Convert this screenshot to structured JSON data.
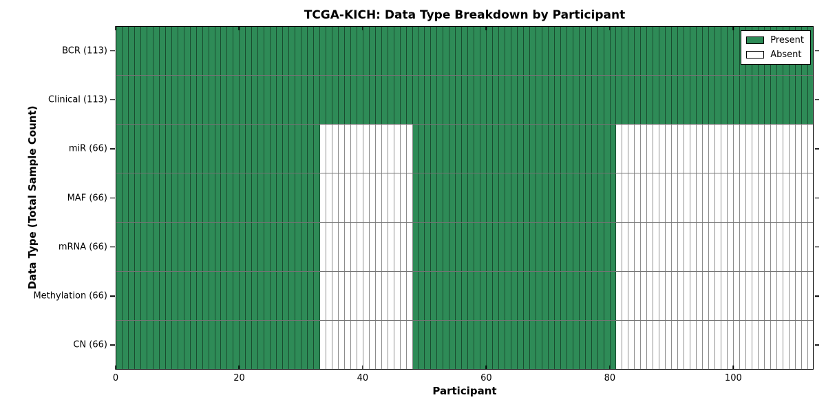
{
  "chart_data": {
    "type": "heatmap",
    "title": "TCGA-KICH: Data Type Breakdown by Participant",
    "xlabel": "Participant",
    "ylabel": "Data Type (Total Sample Count)",
    "xlim": [
      0,
      113
    ],
    "n_participants": 113,
    "x_ticks": [
      0,
      20,
      40,
      60,
      80,
      100
    ],
    "x_tick_labels": [
      "0",
      "20",
      "40",
      "60",
      "80",
      "100"
    ],
    "grid": "per-cell black edges",
    "legend_position": "upper right",
    "rows": [
      {
        "name": "bcr",
        "label": "BCR (113)",
        "present_count": 113,
        "present_ranges": [
          [
            0,
            113
          ]
        ]
      },
      {
        "name": "clinical",
        "label": "Clinical (113)",
        "present_count": 113,
        "present_ranges": [
          [
            0,
            113
          ]
        ]
      },
      {
        "name": "mir",
        "label": "miR (66)",
        "present_count": 66,
        "present_ranges": [
          [
            0,
            33
          ],
          [
            48,
            81
          ]
        ]
      },
      {
        "name": "maf",
        "label": "MAF (66)",
        "present_count": 66,
        "present_ranges": [
          [
            0,
            33
          ],
          [
            48,
            81
          ]
        ]
      },
      {
        "name": "mrna",
        "label": "mRNA (66)",
        "present_count": 66,
        "present_ranges": [
          [
            0,
            33
          ],
          [
            48,
            81
          ]
        ]
      },
      {
        "name": "methylation",
        "label": "Methylation (66)",
        "present_count": 66,
        "present_ranges": [
          [
            0,
            33
          ],
          [
            48,
            81
          ]
        ]
      },
      {
        "name": "cn",
        "label": "CN (66)",
        "present_count": 66,
        "present_ranges": [
          [
            0,
            33
          ],
          [
            48,
            81
          ]
        ]
      }
    ],
    "legend": [
      {
        "label": "Present",
        "color": "#2e8b57"
      },
      {
        "label": "Absent",
        "color": "#ffffff"
      }
    ],
    "colors": {
      "present": "#2e8b57",
      "absent": "#ffffff",
      "cell_edge": "#000000",
      "background": "#ffffff"
    }
  }
}
